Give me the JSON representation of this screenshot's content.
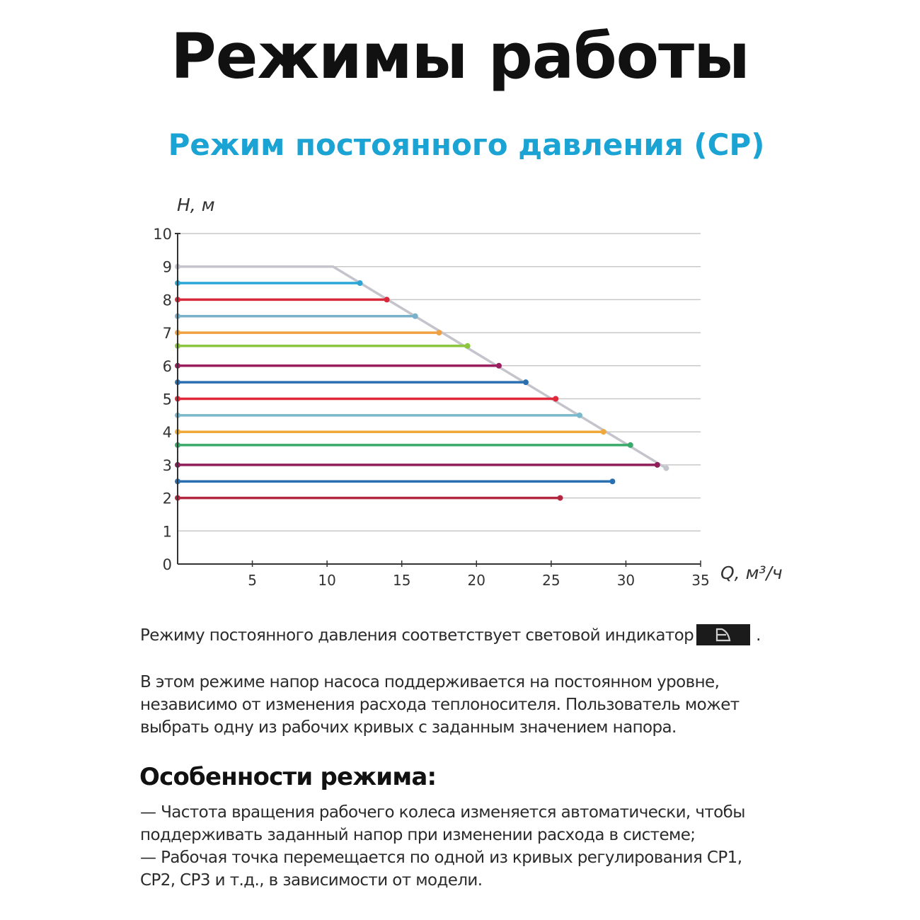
{
  "page": {
    "title": "Режимы работы",
    "subtitle": "Режим постоянного давления (CP)"
  },
  "text": {
    "indicator_sentence": "Режиму постоянного давления соответствует световой индикатор",
    "indicator_icon": "constant-pressure-indicator-icon",
    "indicator_period": ".",
    "description_lines": [
      "В этом режиме напор насоса поддерживается на постоянном уровне,",
      "независимо от изменения расхода теплоносителя. Пользователь может",
      "выбрать одну из рабочих кривых с заданным значением напора."
    ],
    "features_heading": "Особенности режима:",
    "features_lines": [
      "— Частота вращения рабочего колеса изменяется автоматически, чтобы",
      "поддерживать заданный напор при изменении расхода в системе;",
      "— Рабочая точка перемещается по одной из кривых регулирования CP1,",
      "CP2, CP3 и т.д., в зависимости от модели."
    ]
  },
  "colors": {
    "title": "#111111",
    "subtitle": "#1ba3d4",
    "grid": "#c8c8c8",
    "axis": "#333333",
    "envelope": "#c4c4cc"
  },
  "chart_data": {
    "type": "line",
    "title": "Режим постоянного давления (CP)",
    "xlabel": "Q, м³/ч",
    "ylabel": "H, м",
    "xlim": [
      0,
      35
    ],
    "ylim": [
      0,
      10
    ],
    "x_ticks": [
      5,
      10,
      15,
      20,
      25,
      30,
      35
    ],
    "y_ticks": [
      0,
      1,
      2,
      3,
      4,
      5,
      6,
      7,
      8,
      9,
      10
    ],
    "grid": "horizontal",
    "legend": "none",
    "envelope": {
      "name": "max curve",
      "color": "#c4c4cc",
      "points": [
        [
          0,
          9.0
        ],
        [
          10.4,
          9.0
        ],
        [
          32.7,
          2.9
        ]
      ]
    },
    "series": [
      {
        "name": "CP 8.5 m",
        "H": 8.5,
        "Q_max": 12.2,
        "color": "#2aa6d6"
      },
      {
        "name": "CP 8.0 m",
        "H": 8.0,
        "Q_max": 14.0,
        "color": "#d8283a"
      },
      {
        "name": "CP 7.5 m",
        "H": 7.5,
        "Q_max": 15.9,
        "color": "#78b1c9"
      },
      {
        "name": "CP 7.0 m",
        "H": 7.0,
        "Q_max": 17.5,
        "color": "#f0a040"
      },
      {
        "name": "CP 6.6 m",
        "H": 6.6,
        "Q_max": 19.4,
        "color": "#8cc63f"
      },
      {
        "name": "CP 6.0 m",
        "H": 6.0,
        "Q_max": 21.5,
        "color": "#9b1f5e"
      },
      {
        "name": "CP 5.5 m",
        "H": 5.5,
        "Q_max": 23.3,
        "color": "#2a6fb0"
      },
      {
        "name": "CP 5.0 m",
        "H": 5.0,
        "Q_max": 25.3,
        "color": "#e0283a"
      },
      {
        "name": "CP 4.5 m",
        "H": 4.5,
        "Q_max": 26.9,
        "color": "#7ab8cc"
      },
      {
        "name": "CP 4.0 m",
        "H": 4.0,
        "Q_max": 28.5,
        "color": "#f0a838"
      },
      {
        "name": "CP 3.6 m",
        "H": 3.6,
        "Q_max": 30.3,
        "color": "#3aaa6a"
      },
      {
        "name": "CP 3.0 m",
        "H": 3.0,
        "Q_max": 32.1,
        "color": "#8e1d5a"
      },
      {
        "name": "CP 2.5 m",
        "H": 2.5,
        "Q_max": 29.1,
        "color": "#2a6fb0"
      },
      {
        "name": "CP 2.0 m",
        "H": 2.0,
        "Q_max": 25.6,
        "color": "#b3263f"
      }
    ]
  }
}
